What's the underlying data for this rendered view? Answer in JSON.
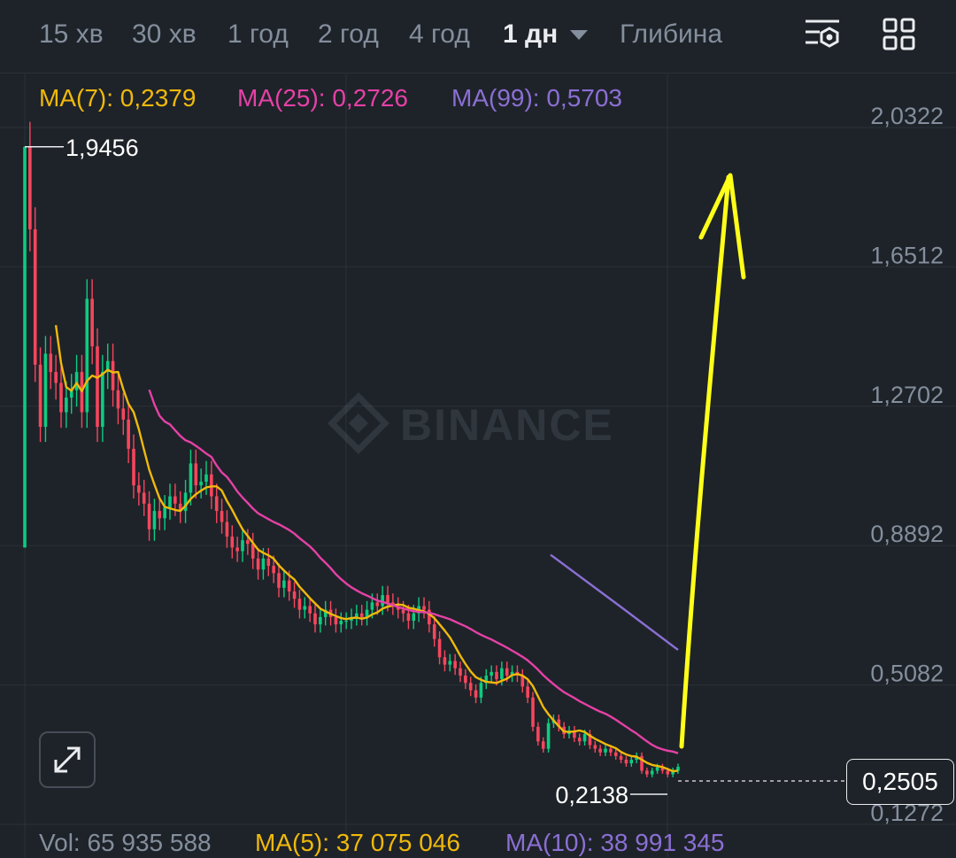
{
  "timeframes": [
    "15 хв",
    "30 хв",
    "1 год",
    "2 год",
    "4 год",
    "1 дн"
  ],
  "depth_label": "Глибина",
  "active_timeframe": "1 дн",
  "ma_legend": {
    "ma7": "MA(7): 0,2379",
    "ma25": "MA(25): 0,2726",
    "ma99": "MA(99): 0,5703"
  },
  "volume_legend": {
    "vol": "Vol: 65 935 588",
    "ma5": "MA(5): 37 075 046",
    "ma10": "MA(10): 38 991 345"
  },
  "watermark": "BINANCE",
  "current_price": "0,2505",
  "high_label": "1,9456",
  "low_label": "0,2138",
  "colors": {
    "background": "#1e2329",
    "up": "#0ecb81",
    "down": "#f6465d",
    "ma7": "#f0b90b",
    "ma25": "#e541a6",
    "ma99": "#8b6fd4",
    "annotation": "#ffff1a"
  },
  "icons": [
    "settings-layers-icon",
    "grid-layout-icon",
    "expand-icon"
  ],
  "chart_data": {
    "type": "candlestick",
    "price_axis_ticks": [
      "2,0322",
      "1,6512",
      "1,2702",
      "0,8892",
      "0,5082",
      "0,1272"
    ],
    "price_axis_values": [
      2.0322,
      1.6512,
      1.2702,
      0.8892,
      0.5082,
      0.1272
    ],
    "ylim": [
      0.1272,
      2.0322
    ],
    "grid": true,
    "first_candle": {
      "open": 0.85,
      "close": 1.9456,
      "high": 1.9456,
      "low": 0.85
    },
    "closes": [
      1.9456,
      1.72,
      1.35,
      1.18,
      1.38,
      1.33,
      1.3,
      1.22,
      1.26,
      1.28,
      1.33,
      1.22,
      1.53,
      1.4,
      1.18,
      1.33,
      1.36,
      1.28,
      1.23,
      1.2,
      1.12,
      1.02,
      1.0,
      0.97,
      0.9,
      0.95,
      0.93,
      0.96,
      0.99,
      0.97,
      0.95,
      1.0,
      1.08,
      1.02,
      1.03,
      1.05,
      0.99,
      0.95,
      0.92,
      0.88,
      0.85,
      0.84,
      0.87,
      0.86,
      0.82,
      0.79,
      0.82,
      0.8,
      0.78,
      0.74,
      0.76,
      0.73,
      0.71,
      0.68,
      0.69,
      0.67,
      0.64,
      0.66,
      0.68,
      0.66,
      0.64,
      0.65,
      0.65,
      0.66,
      0.67,
      0.66,
      0.68,
      0.7,
      0.69,
      0.72,
      0.7,
      0.69,
      0.68,
      0.67,
      0.65,
      0.67,
      0.69,
      0.68,
      0.64,
      0.6,
      0.55,
      0.53,
      0.54,
      0.52,
      0.5,
      0.48,
      0.46,
      0.44,
      0.48,
      0.5,
      0.51,
      0.49,
      0.52,
      0.5,
      0.51,
      0.5,
      0.47,
      0.44,
      0.36,
      0.32,
      0.3,
      0.37,
      0.38,
      0.36,
      0.34,
      0.35,
      0.33,
      0.32,
      0.34,
      0.31,
      0.3,
      0.29,
      0.3,
      0.29,
      0.28,
      0.27,
      0.26,
      0.27,
      0.28,
      0.24,
      0.23,
      0.24,
      0.25,
      0.24,
      0.23,
      0.24,
      0.2505
    ],
    "series": [
      {
        "name": "MA(7)",
        "values_note": "computed from closes"
      },
      {
        "name": "MA(25)",
        "values_note": "computed from closes"
      },
      {
        "name": "MA(99)",
        "last": 0.5703
      }
    ]
  }
}
